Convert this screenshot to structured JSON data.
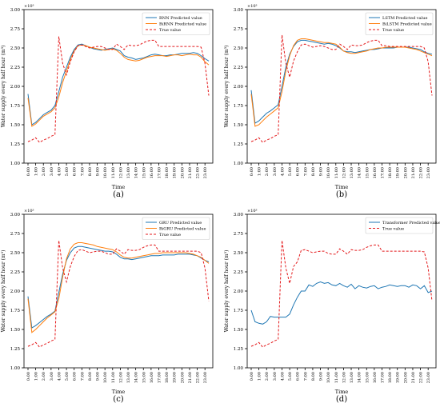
{
  "colors": {
    "blue": "#1f77b4",
    "orange": "#ff7f0e",
    "red": "#e41a1c",
    "axis": "#000000"
  },
  "chart_data": [
    {
      "type": "line",
      "panel_label": "(a)",
      "xlabel": "Time",
      "ylabel": "Water supply every half hour (m³)",
      "exponent_label": "×10³",
      "ylim": [
        1.0,
        3.0
      ],
      "y_ticks": [
        "1.00",
        "1.25",
        "1.50",
        "1.75",
        "2.00",
        "2.25",
        "2.50",
        "2.75",
        "3.00"
      ],
      "x_ticks": [
        "0:00",
        "1:00",
        "2:00",
        "3:00",
        "4:00",
        "5:00",
        "6:00",
        "7:00",
        "8:00",
        "9:00",
        "10:00",
        "11:00",
        "12:00",
        "13:00",
        "14:00",
        "15:00",
        "16:00",
        "17:00",
        "18:00",
        "19:00",
        "20:00",
        "21:00",
        "22:00",
        "23:00"
      ],
      "legend_position": "top-right",
      "series": [
        {
          "name": "RNN Predicted value",
          "color": "#1f77b4",
          "dash": "solid",
          "values": [
            1.9,
            1.5,
            1.53,
            1.58,
            1.63,
            1.66,
            1.69,
            1.75,
            1.93,
            2.12,
            2.25,
            2.38,
            2.48,
            2.54,
            2.55,
            2.53,
            2.51,
            2.49,
            2.48,
            2.47,
            2.48,
            2.49,
            2.5,
            2.48,
            2.46,
            2.4,
            2.38,
            2.37,
            2.35,
            2.36,
            2.37,
            2.39,
            2.41,
            2.42,
            2.41,
            2.4,
            2.4,
            2.41,
            2.41,
            2.42,
            2.43,
            2.43,
            2.43,
            2.44,
            2.43,
            2.4,
            2.36,
            2.33
          ]
        },
        {
          "name": "BiRNN Predicted value",
          "color": "#ff7f0e",
          "dash": "solid",
          "values": [
            1.85,
            1.48,
            1.51,
            1.56,
            1.61,
            1.64,
            1.67,
            1.72,
            1.86,
            2.05,
            2.2,
            2.35,
            2.46,
            2.53,
            2.54,
            2.53,
            2.51,
            2.5,
            2.49,
            2.48,
            2.47,
            2.48,
            2.49,
            2.47,
            2.43,
            2.38,
            2.35,
            2.34,
            2.33,
            2.34,
            2.36,
            2.38,
            2.39,
            2.4,
            2.4,
            2.4,
            2.39,
            2.4,
            2.41,
            2.41,
            2.4,
            2.41,
            2.42,
            2.41,
            2.41,
            2.38,
            2.32,
            2.28
          ]
        },
        {
          "name": "True value",
          "color": "#e41a1c",
          "dash": "dashed",
          "values": [
            1.28,
            1.3,
            1.33,
            1.27,
            1.3,
            1.32,
            1.35,
            1.37,
            2.65,
            2.3,
            2.15,
            2.32,
            2.45,
            2.53,
            2.54,
            2.52,
            2.5,
            2.51,
            2.52,
            2.52,
            2.5,
            2.48,
            2.48,
            2.55,
            2.52,
            2.48,
            2.54,
            2.53,
            2.53,
            2.54,
            2.57,
            2.59,
            2.6,
            2.6,
            2.52,
            2.52,
            2.52,
            2.52,
            2.52,
            2.52,
            2.52,
            2.52,
            2.52,
            2.52,
            2.52,
            2.51,
            2.3,
            1.88
          ]
        }
      ]
    },
    {
      "type": "line",
      "panel_label": "(b)",
      "xlabel": "Time",
      "ylabel": "Water supply every half hour (m³)",
      "exponent_label": "×10³",
      "ylim": [
        1.0,
        3.0
      ],
      "y_ticks": [
        "1.00",
        "1.25",
        "1.50",
        "1.75",
        "2.00",
        "2.25",
        "2.50",
        "2.75",
        "3.00"
      ],
      "x_ticks": [
        "0:00",
        "1:00",
        "2:00",
        "3:00",
        "4:00",
        "5:00",
        "6:00",
        "7:00",
        "8:00",
        "9:00",
        "10:00",
        "11:00",
        "12:00",
        "13:00",
        "14:00",
        "15:00",
        "16:00",
        "17:00",
        "18:00",
        "19:00",
        "20:00",
        "21:00",
        "22:00",
        "23:00"
      ],
      "legend_position": "top-right",
      "series": [
        {
          "name": "LSTM Predicted value",
          "color": "#1f77b4",
          "dash": "solid",
          "values": [
            1.95,
            1.52,
            1.55,
            1.6,
            1.65,
            1.68,
            1.72,
            1.76,
            2.0,
            2.25,
            2.42,
            2.52,
            2.58,
            2.6,
            2.6,
            2.59,
            2.58,
            2.57,
            2.56,
            2.55,
            2.56,
            2.55,
            2.53,
            2.5,
            2.46,
            2.45,
            2.45,
            2.44,
            2.45,
            2.46,
            2.47,
            2.48,
            2.48,
            2.49,
            2.5,
            2.5,
            2.5,
            2.5,
            2.51,
            2.51,
            2.51,
            2.51,
            2.5,
            2.49,
            2.48,
            2.45,
            2.43,
            2.42
          ]
        },
        {
          "name": "BiLSTM Predicted value",
          "color": "#ff7f0e",
          "dash": "solid",
          "values": [
            1.9,
            1.48,
            1.5,
            1.55,
            1.6,
            1.64,
            1.68,
            1.72,
            1.93,
            2.2,
            2.4,
            2.53,
            2.6,
            2.62,
            2.62,
            2.61,
            2.6,
            2.59,
            2.58,
            2.57,
            2.57,
            2.56,
            2.55,
            2.51,
            2.46,
            2.44,
            2.43,
            2.43,
            2.44,
            2.45,
            2.46,
            2.48,
            2.49,
            2.5,
            2.5,
            2.51,
            2.51,
            2.51,
            2.51,
            2.51,
            2.51,
            2.5,
            2.49,
            2.48,
            2.46,
            2.44,
            2.42,
            2.4
          ]
        },
        {
          "name": "True value",
          "color": "#e41a1c",
          "dash": "dashed",
          "values": [
            1.28,
            1.3,
            1.33,
            1.27,
            1.3,
            1.32,
            1.35,
            1.37,
            2.67,
            2.3,
            2.12,
            2.33,
            2.45,
            2.54,
            2.55,
            2.53,
            2.51,
            2.52,
            2.53,
            2.52,
            2.5,
            2.48,
            2.48,
            2.55,
            2.52,
            2.48,
            2.54,
            2.53,
            2.53,
            2.54,
            2.57,
            2.59,
            2.6,
            2.6,
            2.53,
            2.53,
            2.52,
            2.52,
            2.52,
            2.52,
            2.52,
            2.52,
            2.52,
            2.52,
            2.52,
            2.5,
            2.32,
            1.88
          ]
        }
      ]
    },
    {
      "type": "line",
      "panel_label": "(c)",
      "xlabel": "Time",
      "ylabel": "Water supply every half hour (m³)",
      "exponent_label": "×10³",
      "ylim": [
        1.0,
        3.0
      ],
      "y_ticks": [
        "1.00",
        "1.25",
        "1.50",
        "1.75",
        "2.00",
        "2.25",
        "2.50",
        "2.75",
        "3.00"
      ],
      "x_ticks": [
        "0:00",
        "1:00",
        "2:00",
        "3:00",
        "4:00",
        "5:00",
        "6:00",
        "7:00",
        "8:00",
        "9:00",
        "10:00",
        "11:00",
        "12:00",
        "13:00",
        "14:00",
        "15:00",
        "16:00",
        "17:00",
        "18:00",
        "19:00",
        "20:00",
        "21:00",
        "22:00",
        "23:00"
      ],
      "legend_position": "top-right",
      "series": [
        {
          "name": "GRU Predicted value",
          "color": "#1f77b4",
          "dash": "solid",
          "values": [
            1.93,
            1.52,
            1.55,
            1.59,
            1.63,
            1.67,
            1.7,
            1.74,
            1.98,
            2.22,
            2.4,
            2.5,
            2.56,
            2.58,
            2.58,
            2.57,
            2.56,
            2.55,
            2.54,
            2.53,
            2.52,
            2.52,
            2.51,
            2.48,
            2.44,
            2.42,
            2.42,
            2.41,
            2.42,
            2.43,
            2.44,
            2.45,
            2.46,
            2.46,
            2.46,
            2.47,
            2.47,
            2.47,
            2.47,
            2.48,
            2.48,
            2.48,
            2.48,
            2.47,
            2.46,
            2.43,
            2.4,
            2.38
          ]
        },
        {
          "name": "BiGRU Predicted value",
          "color": "#ff7f0e",
          "dash": "solid",
          "values": [
            1.9,
            1.46,
            1.5,
            1.55,
            1.6,
            1.65,
            1.69,
            1.73,
            1.9,
            2.18,
            2.42,
            2.55,
            2.61,
            2.63,
            2.63,
            2.62,
            2.61,
            2.6,
            2.58,
            2.57,
            2.56,
            2.55,
            2.54,
            2.51,
            2.47,
            2.44,
            2.43,
            2.43,
            2.44,
            2.45,
            2.46,
            2.47,
            2.48,
            2.49,
            2.49,
            2.5,
            2.5,
            2.5,
            2.5,
            2.5,
            2.5,
            2.5,
            2.49,
            2.48,
            2.46,
            2.44,
            2.4,
            2.36
          ]
        },
        {
          "name": "True value",
          "color": "#e41a1c",
          "dash": "dashed",
          "values": [
            1.28,
            1.3,
            1.33,
            1.27,
            1.3,
            1.32,
            1.35,
            1.37,
            2.66,
            2.3,
            2.12,
            2.32,
            2.45,
            2.53,
            2.54,
            2.52,
            2.5,
            2.51,
            2.52,
            2.52,
            2.5,
            2.48,
            2.48,
            2.55,
            2.52,
            2.48,
            2.54,
            2.53,
            2.53,
            2.54,
            2.57,
            2.59,
            2.6,
            2.6,
            2.52,
            2.52,
            2.52,
            2.52,
            2.52,
            2.52,
            2.52,
            2.52,
            2.52,
            2.52,
            2.52,
            2.5,
            2.3,
            1.87
          ]
        }
      ]
    },
    {
      "type": "line",
      "panel_label": "(d)",
      "xlabel": "Time",
      "ylabel": "Water supply every half hour (m³)",
      "exponent_label": "×10³",
      "ylim": [
        1.0,
        3.0
      ],
      "y_ticks": [
        "1.00",
        "1.25",
        "1.50",
        "1.75",
        "2.00",
        "2.25",
        "2.50",
        "2.75",
        "3.00"
      ],
      "x_ticks": [
        "0:00",
        "1:00",
        "2:00",
        "3:00",
        "4:00",
        "5:00",
        "6:00",
        "7:00",
        "8:00",
        "9:00",
        "10:00",
        "11:00",
        "12:00",
        "13:00",
        "14:00",
        "15:00",
        "16:00",
        "17:00",
        "18:00",
        "19:00",
        "20:00",
        "21:00",
        "22:00",
        "23:00"
      ],
      "legend_position": "top-right",
      "series": [
        {
          "name": "Transformer Predicted value",
          "color": "#1f77b4",
          "dash": "solid",
          "values": [
            1.75,
            1.6,
            1.58,
            1.57,
            1.6,
            1.67,
            1.66,
            1.66,
            1.66,
            1.66,
            1.7,
            1.82,
            1.92,
            2.0,
            2.0,
            2.08,
            2.06,
            2.1,
            2.12,
            2.1,
            2.11,
            2.08,
            2.07,
            2.1,
            2.07,
            2.05,
            2.09,
            2.03,
            2.07,
            2.05,
            2.04,
            2.06,
            2.07,
            2.03,
            2.05,
            2.06,
            2.08,
            2.07,
            2.06,
            2.07,
            2.07,
            2.05,
            2.08,
            2.07,
            2.03,
            2.07,
            1.98,
            2.0
          ]
        },
        {
          "name": "True value",
          "color": "#e41a1c",
          "dash": "dashed",
          "values": [
            1.28,
            1.3,
            1.33,
            1.27,
            1.3,
            1.32,
            1.35,
            1.37,
            2.66,
            2.3,
            2.1,
            2.32,
            2.38,
            2.53,
            2.54,
            2.52,
            2.5,
            2.51,
            2.52,
            2.52,
            2.49,
            2.48,
            2.48,
            2.55,
            2.52,
            2.48,
            2.54,
            2.53,
            2.53,
            2.54,
            2.57,
            2.59,
            2.6,
            2.6,
            2.52,
            2.52,
            2.52,
            2.52,
            2.52,
            2.52,
            2.52,
            2.52,
            2.52,
            2.52,
            2.52,
            2.51,
            2.3,
            1.87
          ]
        }
      ]
    }
  ]
}
